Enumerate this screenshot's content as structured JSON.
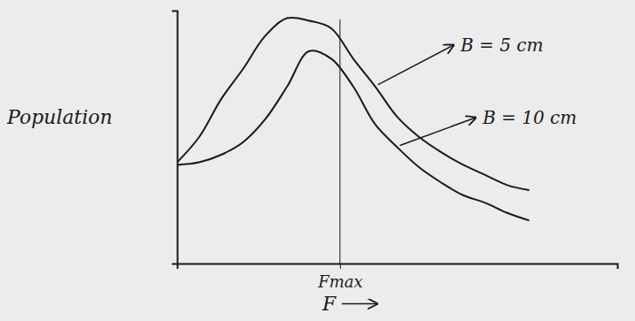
{
  "chart_data": {
    "type": "line",
    "y_label": "Population",
    "x_label": "F",
    "x": [
      0,
      0.5,
      1,
      1.5,
      2,
      2.5,
      3,
      3.5,
      4,
      4.5,
      5,
      5.5,
      6,
      6.5,
      7,
      7.5,
      8
    ],
    "series": [
      {
        "name": "B = 5 cm",
        "color": "#1a1a1a",
        "values": [
          4.0,
          5.0,
          6.5,
          7.7,
          9.0,
          9.7,
          9.6,
          9.3,
          8.1,
          7.0,
          5.8,
          5.0,
          4.4,
          3.9,
          3.5,
          3.1,
          2.9
        ]
      },
      {
        "name": "B = 10 cm",
        "color": "#1a1a1a",
        "values": [
          3.9,
          4.0,
          4.3,
          4.8,
          5.7,
          7.0,
          8.4,
          8.1,
          7.0,
          5.5,
          4.6,
          3.8,
          3.2,
          2.7,
          2.4,
          2.0,
          1.7
        ]
      }
    ],
    "xlim": [
      0,
      10
    ],
    "ylim": [
      0,
      10
    ],
    "xticks": [
      {
        "value": 3.7,
        "label": "Fmax"
      }
    ],
    "yticks": [],
    "tick_labels": "x",
    "grid": false
  }
}
